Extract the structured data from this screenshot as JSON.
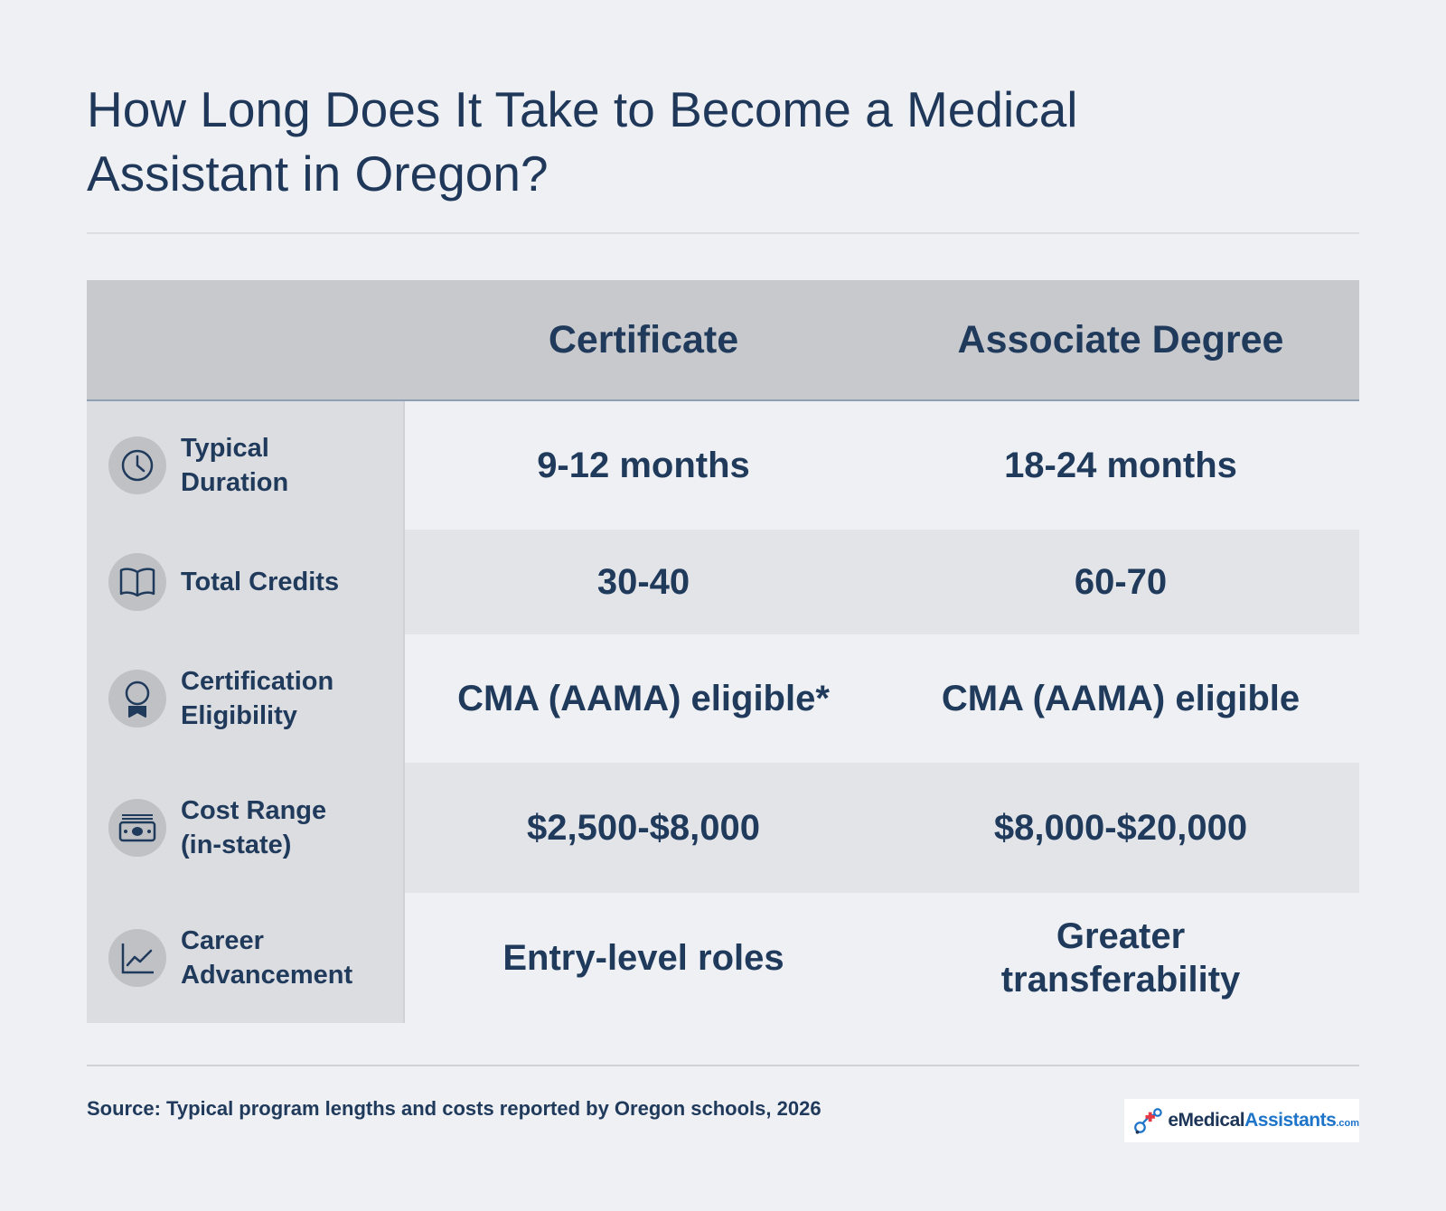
{
  "title": {
    "line1": "How Long Does It Take to Become a Medical",
    "line2": "Assistant in Oregon?"
  },
  "table": {
    "columns": [
      "Certificate",
      "Associate Degree"
    ],
    "rows": [
      {
        "label_line1": "Typical",
        "label_line2": "Duration",
        "icon": "clock-icon",
        "certificate": "9-12 months",
        "associate": "18-24 months"
      },
      {
        "label_line1": "Total Credits",
        "label_line2": "",
        "icon": "book-icon",
        "certificate": "30-40",
        "associate": "60-70"
      },
      {
        "label_line1": "Certification",
        "label_line2": "Eligibility",
        "icon": "award-ribbon-icon",
        "certificate": "CMA (AAMA) eligible*",
        "associate": "CMA (AAMA) eligible"
      },
      {
        "label_line1": "Cost Range",
        "label_line2": "(in-state)",
        "icon": "money-icon",
        "certificate": "$2,500-$8,000",
        "associate": "$8,000-$20,000"
      },
      {
        "label_line1": "Career",
        "label_line2": "Advancement",
        "icon": "chart-line-icon",
        "certificate": "Entry-level roles",
        "associate_line1": "Greater",
        "associate_line2": "transferability"
      }
    ]
  },
  "footer": {
    "source": "Source: Typical program lengths and costs reported by Oregon schools, 2026",
    "logo": {
      "part1": "eMedical",
      "part2": "Assistants",
      "part3": ".com"
    }
  },
  "colors": {
    "text": "#203a5c",
    "background": "#eff0f4",
    "header_bg": "#c8c9cd",
    "label_bg": "#dcdde1",
    "row_light": "#eef0f3",
    "row_dark": "#e3e4e8"
  }
}
